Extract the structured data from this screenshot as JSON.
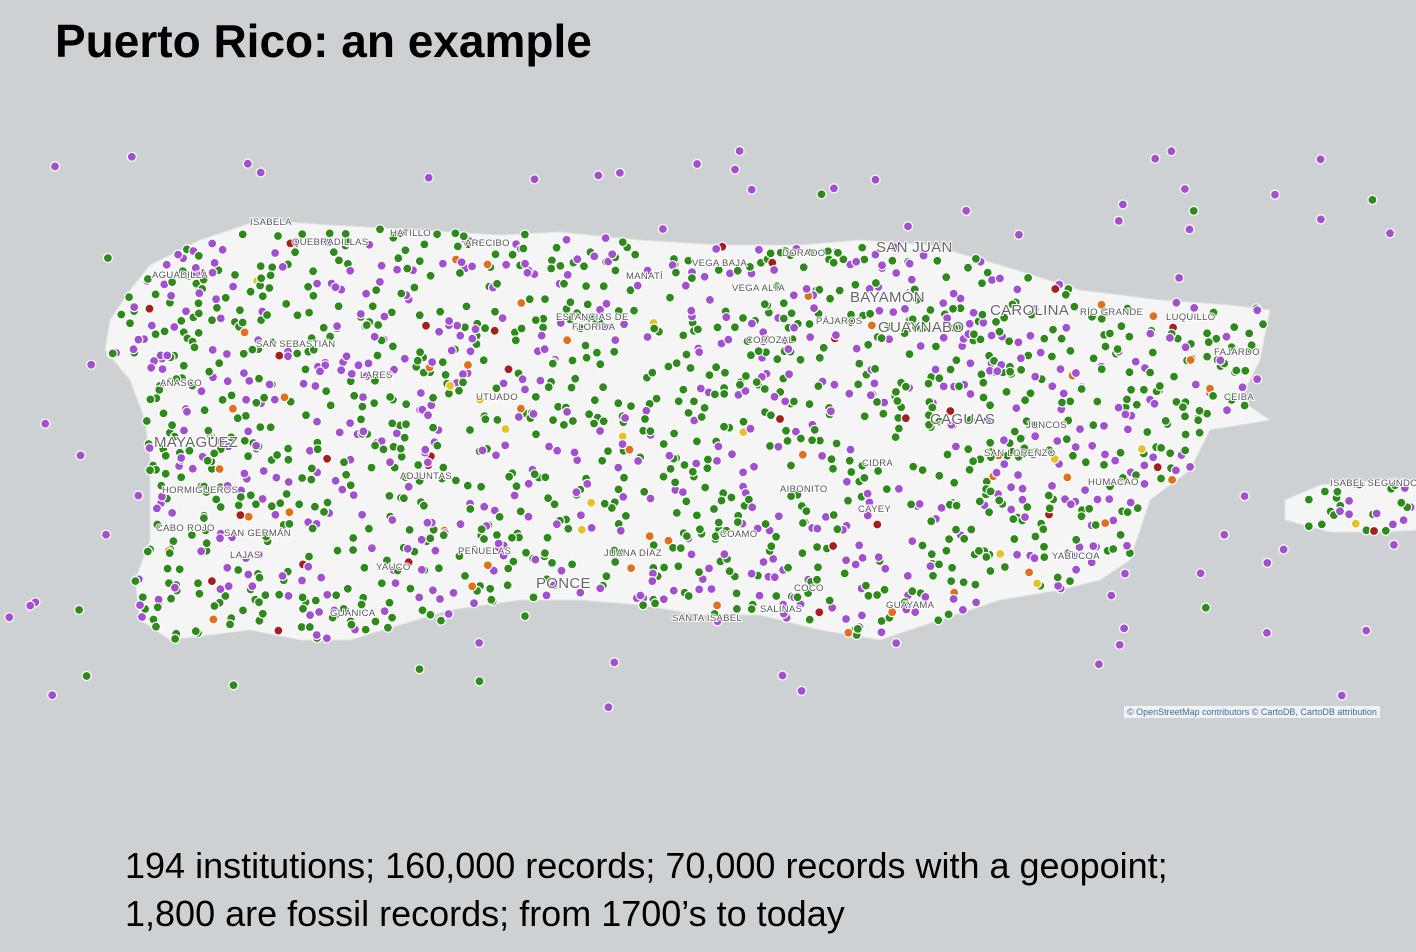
{
  "header": {
    "title": "Puerto Rico: an example"
  },
  "map": {
    "places": [
      "ISABELA",
      "QUEBRADILLAS",
      "HATILLO",
      "ARECIBO",
      "AGUADILLA",
      "MANATÍ",
      "VEGA BAJA",
      "DORADO",
      "SAN JUAN",
      "VEGA ALTA",
      "BAYAMÓN",
      "CAROLINA",
      "RÍO GRANDE",
      "LUQUILLO",
      "PÁJAROS",
      "GUAYNABO",
      "ESTANCIAS DE",
      "FLORIDA",
      "COROZAL",
      "SAN SEBASTIÁN",
      "FAJARDO",
      "LARES",
      "AÑASCO",
      "UTUADO",
      "CEIBA",
      "CAGUAS",
      "JUNCOS",
      "MAYAGÜEZ",
      "SAN LORENZO",
      "CIDRA",
      "ADJUNTAS",
      "HUMACAO",
      "ISABEL SEGUNDO",
      "AIBONITO",
      "HORMIGUEROS",
      "CAYEY",
      "CABO ROJO",
      "SAN GERMÁN",
      "COAMO",
      "LAJAS",
      "PEÑUELAS",
      "JUANA DÍAZ",
      "YABUCOA",
      "YAUCO",
      "PONCE",
      "COCO",
      "GUAYAMA",
      "SALINAS",
      "GUÁNICA",
      "SANTA ISABEL"
    ],
    "attribution": "© OpenStreetMap contributors © CartoDB, CartoDB attribution"
  },
  "body": {
    "lines": [
      "194 institutions; 160,000 records; 70,000 records with a geopoint;",
      "1,800 are fossil records; from 1700’s to today"
    ]
  }
}
